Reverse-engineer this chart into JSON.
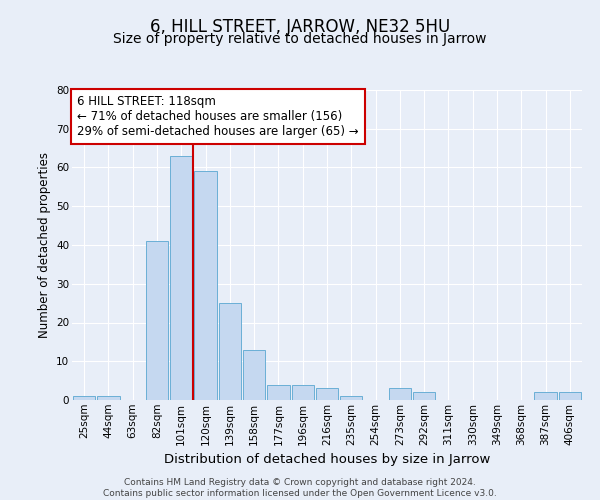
{
  "title": "6, HILL STREET, JARROW, NE32 5HU",
  "subtitle": "Size of property relative to detached houses in Jarrow",
  "xlabel": "Distribution of detached houses by size in Jarrow",
  "ylabel": "Number of detached properties",
  "bin_labels": [
    "25sqm",
    "44sqm",
    "63sqm",
    "82sqm",
    "101sqm",
    "120sqm",
    "139sqm",
    "158sqm",
    "177sqm",
    "196sqm",
    "216sqm",
    "235sqm",
    "254sqm",
    "273sqm",
    "292sqm",
    "311sqm",
    "330sqm",
    "349sqm",
    "368sqm",
    "387sqm",
    "406sqm"
  ],
  "bar_heights": [
    1,
    1,
    0,
    41,
    63,
    59,
    25,
    13,
    4,
    4,
    3,
    1,
    0,
    3,
    2,
    0,
    0,
    0,
    0,
    2,
    2
  ],
  "bar_color": "#c5d8f0",
  "bar_edge_color": "#6aafd6",
  "vline_color": "#cc0000",
  "vline_x_index": 5,
  "ylim": [
    0,
    80
  ],
  "yticks": [
    0,
    10,
    20,
    30,
    40,
    50,
    60,
    70,
    80
  ],
  "annotation_title": "6 HILL STREET: 118sqm",
  "annotation_line1": "← 71% of detached houses are smaller (156)",
  "annotation_line2": "29% of semi-detached houses are larger (65) →",
  "annotation_box_color": "#ffffff",
  "annotation_box_edge": "#cc0000",
  "footer_line1": "Contains HM Land Registry data © Crown copyright and database right 2024.",
  "footer_line2": "Contains public sector information licensed under the Open Government Licence v3.0.",
  "background_color": "#e8eef8",
  "grid_color": "#ffffff",
  "title_fontsize": 12,
  "subtitle_fontsize": 10,
  "xlabel_fontsize": 9.5,
  "ylabel_fontsize": 8.5,
  "tick_fontsize": 7.5,
  "annotation_fontsize": 8.5,
  "footer_fontsize": 6.5
}
